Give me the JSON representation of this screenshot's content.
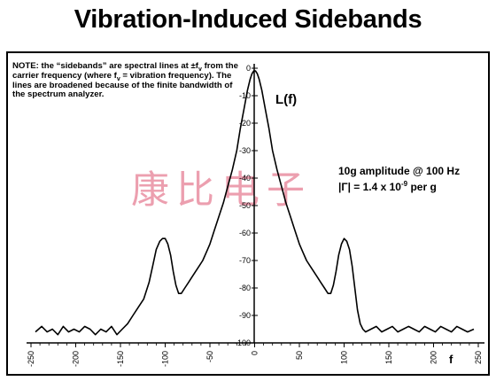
{
  "chart_data": {
    "type": "line",
    "title": "Vibration-Induced Sidebands",
    "xlabel": "f",
    "ylabel": "L(f)",
    "xlim": [
      -250,
      250
    ],
    "ylim": [
      -100,
      0
    ],
    "xticks": [
      -250,
      -200,
      -150,
      -100,
      -50,
      0,
      50,
      100,
      150,
      200,
      250
    ],
    "xtick_labels": [
      "-250",
      "-200",
      "-150",
      "-100",
      "-50",
      "0",
      "50",
      "100",
      "150",
      "200",
      "250"
    ],
    "yticks": [
      0,
      -10,
      -20,
      -30,
      -40,
      -50,
      -60,
      -70,
      -80,
      -90,
      -100
    ],
    "ytick_labels": [
      "0",
      "-10",
      "-20",
      "-30",
      "-40",
      "-50",
      "-60",
      "-70",
      "-80",
      "-90",
      "-100"
    ],
    "grid": false,
    "series": [
      {
        "x": [
          -245,
          -238,
          -232,
          -226,
          -220,
          -214,
          -208,
          -202,
          -196,
          -190,
          -184,
          -178,
          -172,
          -166,
          -160,
          -154,
          -148,
          -142,
          -136,
          -130,
          -124,
          -118,
          -114,
          -110,
          -106,
          -103,
          -100,
          -97,
          -94,
          -91,
          -88,
          -85,
          -82,
          -78,
          -74,
          -70,
          -66,
          -62,
          -58,
          -54,
          -50,
          -45,
          -40,
          -35,
          -30,
          -25,
          -20,
          -16,
          -12,
          -8,
          -5,
          -3,
          -1,
          0,
          1,
          3,
          5,
          8,
          12,
          16,
          20,
          25,
          30,
          35,
          40,
          45,
          50,
          54,
          58,
          62,
          66,
          70,
          74,
          78,
          82,
          85,
          88,
          91,
          94,
          97,
          100,
          103,
          106,
          109,
          112,
          115,
          118,
          121,
          124,
          130,
          136,
          142,
          148,
          154,
          160,
          166,
          172,
          178,
          184,
          190,
          196,
          202,
          208,
          214,
          220,
          226,
          232,
          238,
          245
        ],
        "y": [
          -96,
          -94,
          -96,
          -95,
          -97,
          -94,
          -96,
          -95,
          -96,
          -94,
          -95,
          -97,
          -95,
          -96,
          -94,
          -97,
          -95,
          -93,
          -90,
          -87,
          -84,
          -78,
          -72,
          -66,
          -63,
          -62,
          -62,
          -64,
          -68,
          -74,
          -79,
          -82,
          -82,
          -80,
          -78,
          -76,
          -74,
          -72,
          -70,
          -67,
          -64,
          -59,
          -54,
          -49,
          -43,
          -37,
          -30,
          -22,
          -15,
          -8,
          -4,
          -2,
          -1,
          -1,
          -1,
          -2,
          -4,
          -8,
          -15,
          -22,
          -30,
          -37,
          -43,
          -49,
          -54,
          -59,
          -64,
          -67,
          -70,
          -72,
          -74,
          -76,
          -78,
          -80,
          -82,
          -82,
          -79,
          -74,
          -68,
          -64,
          -62,
          -63,
          -66,
          -72,
          -80,
          -88,
          -93,
          -95,
          -96,
          -95,
          -94,
          -96,
          -95,
          -94,
          -96,
          -95,
          -94,
          -95,
          -96,
          -94,
          -95,
          -96,
          -94,
          -95,
          -96,
          -94,
          -95,
          -96,
          -95
        ]
      }
    ],
    "annotations": {
      "note_intro": "NOTE: the “sidebands” are spectral lines at ±f",
      "note_sub_1": "v",
      "note_mid": " from the carrier frequency (where f",
      "note_sub_2": "v",
      "note_end": " = vibration frequency).  The lines are broadened because of the finite bandwidth of the spectrum analyzer.",
      "amplitude": "10g amplitude @ 100 Hz",
      "gamma_prefix": "|Γ| = 1.4 x 10",
      "gamma_exponent": "-9",
      "gamma_suffix": " per g"
    }
  },
  "watermark": "康比电子",
  "colors": {
    "line": "#000000",
    "watermark": "#dc506e"
  }
}
